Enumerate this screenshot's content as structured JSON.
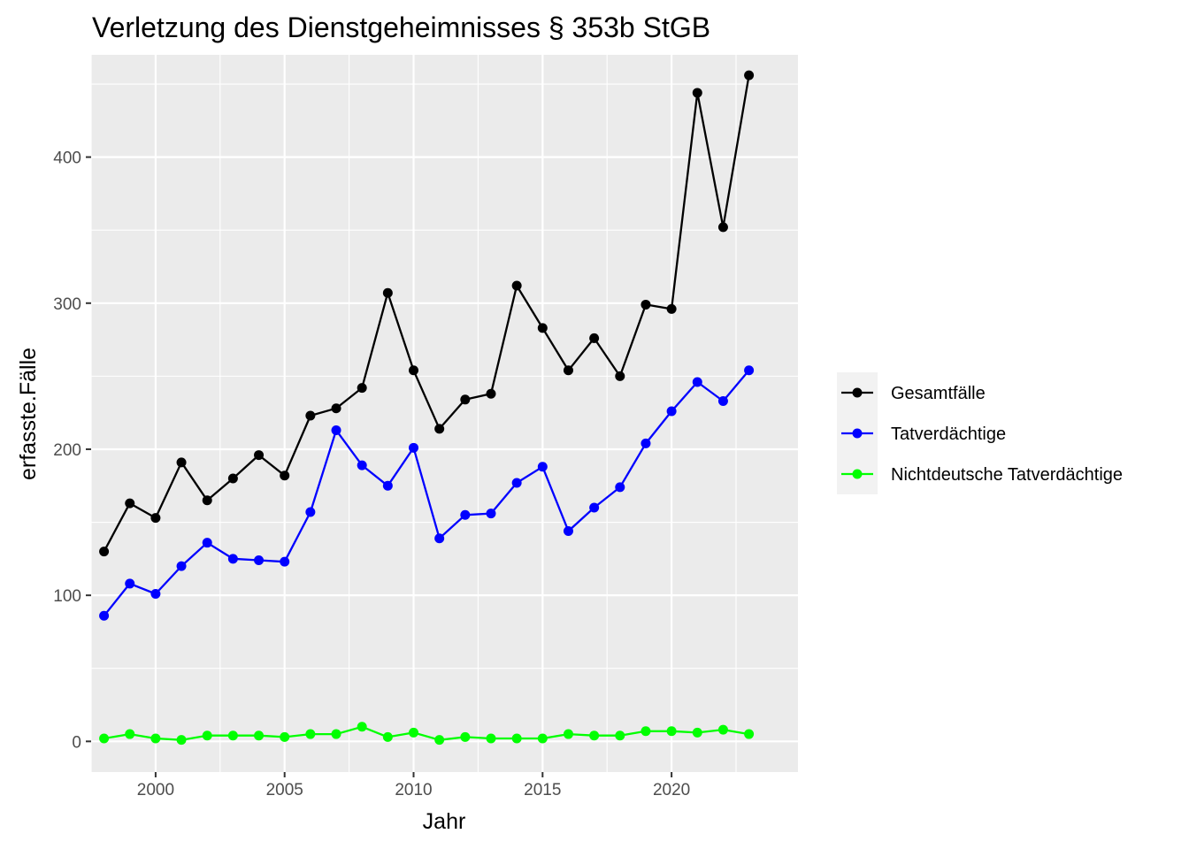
{
  "chart_data": {
    "type": "line",
    "title": "Verletzung des Dienstgeheimnisses § 353b StGB",
    "xlabel": "Jahr",
    "ylabel": "erfasste.Fälle",
    "xlim": [
      1997.5,
      2024.9
    ],
    "ylim": [
      -21,
      470
    ],
    "xticks": [
      2000,
      2005,
      2010,
      2015,
      2020
    ],
    "yticks": [
      0,
      100,
      200,
      300,
      400
    ],
    "grid": true,
    "legend_position": "right",
    "x": [
      1998,
      1999,
      2000,
      2001,
      2002,
      2003,
      2004,
      2005,
      2006,
      2007,
      2008,
      2009,
      2010,
      2011,
      2012,
      2013,
      2014,
      2015,
      2016,
      2017,
      2018,
      2019,
      2020,
      2021,
      2022,
      2023
    ],
    "series": [
      {
        "name": "Gesamtfälle",
        "color": "#000000",
        "values": [
          130,
          163,
          153,
          191,
          165,
          180,
          196,
          182,
          223,
          228,
          242,
          307,
          254,
          214,
          234,
          238,
          312,
          283,
          254,
          276,
          250,
          299,
          296,
          444,
          352,
          456
        ]
      },
      {
        "name": "Tatverdächtige",
        "color": "#0000ff",
        "values": [
          86,
          108,
          101,
          120,
          136,
          125,
          124,
          123,
          157,
          213,
          189,
          175,
          201,
          139,
          155,
          156,
          177,
          188,
          144,
          160,
          174,
          204,
          226,
          246,
          233,
          254
        ]
      },
      {
        "name": "Nichtdeutsche Tatverdächtige",
        "color": "#00ff00",
        "values": [
          2,
          5,
          2,
          1,
          4,
          4,
          4,
          3,
          5,
          5,
          10,
          3,
          6,
          1,
          3,
          2,
          2,
          2,
          5,
          4,
          4,
          7,
          7,
          6,
          8,
          5
        ]
      }
    ]
  },
  "colors": {
    "panel_background": "#ebebeb",
    "grid_major": "#ffffff",
    "legend_key_background": "#f2f2f2"
  }
}
